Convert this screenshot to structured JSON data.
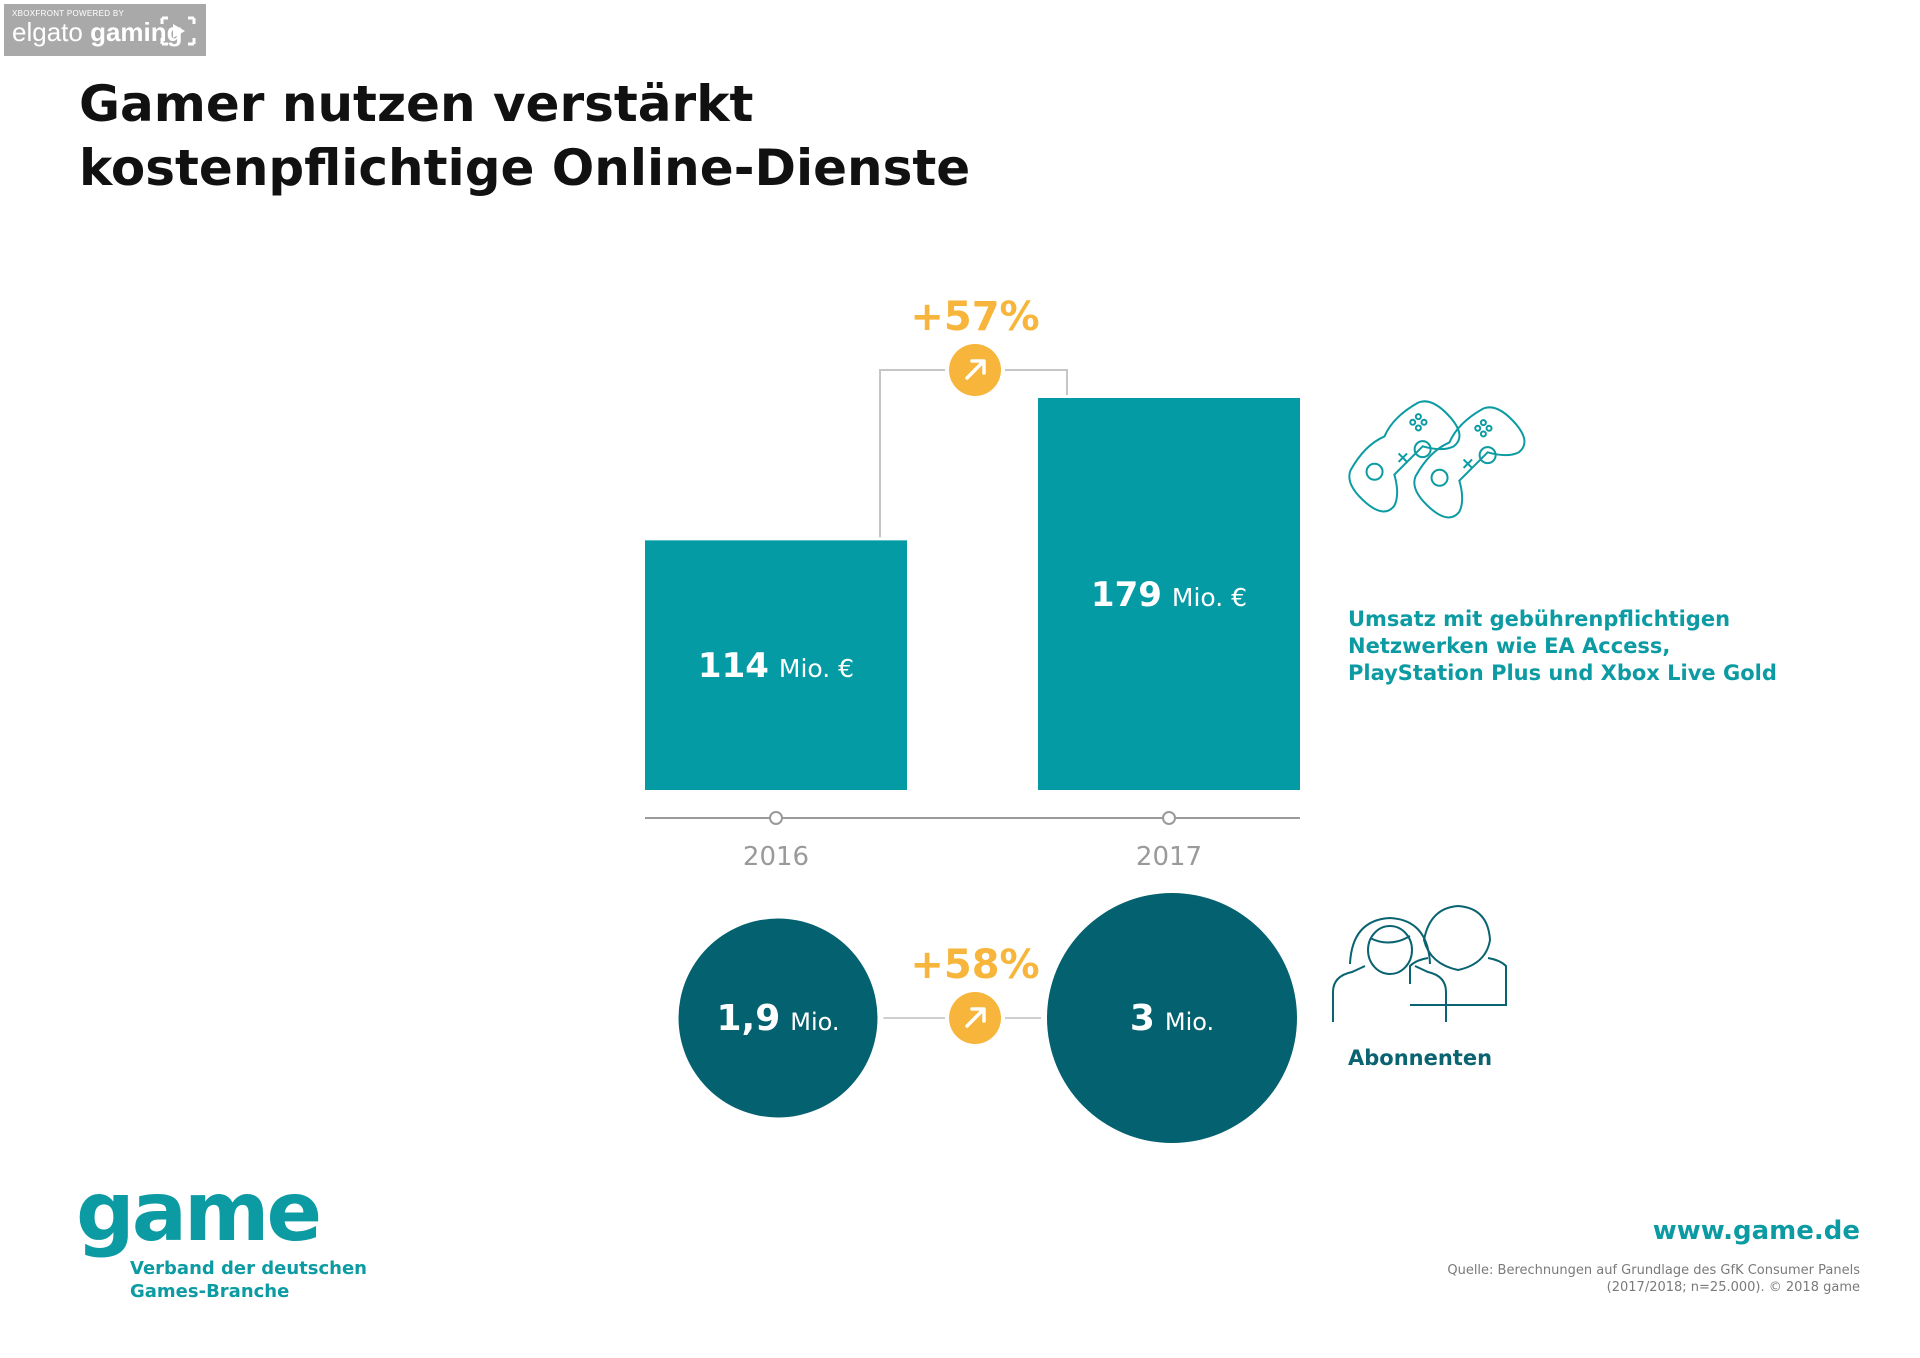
{
  "watermark": {
    "line1": "XBOXFRONT POWERED BY",
    "brand_a": "elgato",
    "brand_b": "gaming"
  },
  "title": {
    "line1": "Gamer nutzen verstärkt",
    "line2": "kostenpflichtige Online-Dienste"
  },
  "colors": {
    "bar": "#049ba5",
    "circle": "#04616f",
    "accent": "#f7b53b",
    "axis": "#9a9a9a",
    "caption_teal": "#0c9ba3",
    "caption_dark": "#0a6370"
  },
  "chart_data": [
    {
      "type": "bar",
      "categories": [
        "2016",
        "2017"
      ],
      "values": [
        114,
        179
      ],
      "value_labels": [
        {
          "number": "114",
          "unit": "Mio. €"
        },
        {
          "number": "179",
          "unit": "Mio. €"
        }
      ],
      "change_label": "+57%",
      "change_icon": "arrow-up-right-icon",
      "caption": [
        "Umsatz mit gebührenpflichtigen",
        "Netzwerken wie EA Access,",
        "PlayStation Plus und Xbox Live Gold"
      ],
      "caption_icon": "gamepad-icon"
    },
    {
      "type": "bubble",
      "categories": [
        "2016",
        "2017"
      ],
      "values": [
        1.9,
        3
      ],
      "value_labels": [
        {
          "number": "1,9",
          "unit": "Mio."
        },
        {
          "number": "3",
          "unit": "Mio."
        }
      ],
      "change_label": "+58%",
      "change_icon": "arrow-up-right-icon",
      "caption": "Abonnenten",
      "caption_icon": "people-icon"
    }
  ],
  "footer": {
    "logo": "game",
    "logo_sub_1": "Verband der deutschen",
    "logo_sub_2": "Games-Branche",
    "website": "www.game.de",
    "source_1": "Quelle: Berechnungen auf Grundlage des GfK Consumer Panels",
    "source_2": "(2017/2018; n=25.000). © 2018 game"
  }
}
